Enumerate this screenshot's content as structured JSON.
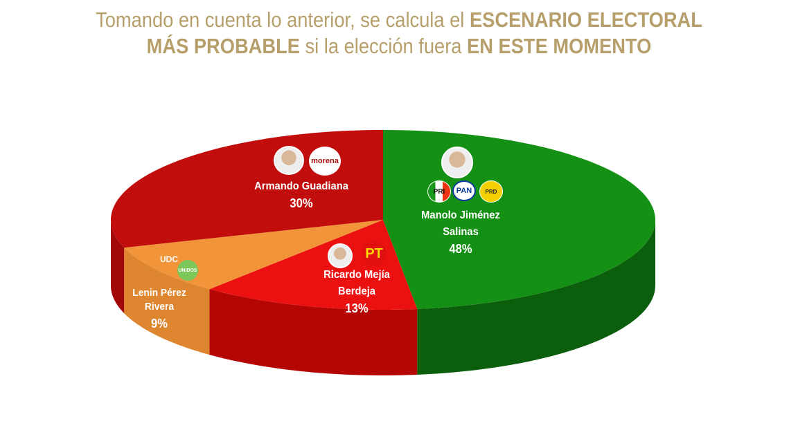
{
  "title": {
    "line1_regular": "Tomando en cuenta lo anterior, se calcula el ",
    "line1_bold": "ESCENARIO ELECTORAL",
    "line2_bold_a": "MÁS PROBABLE",
    "line2_regular": " si la elección fuera ",
    "line2_bold_b": "EN ESTE MOMENTO",
    "color": "#b79f6b"
  },
  "chart_data": {
    "type": "pie",
    "style": "3d",
    "start": "top, clockwise",
    "slices": [
      {
        "name": "Manolo Jiménez Salinas",
        "name_line1": "Manolo Jiménez",
        "name_line2": "Salinas",
        "value": 48,
        "label": "48%",
        "parties": [
          "PRI",
          "PAN",
          "PRD"
        ],
        "color": "#149114",
        "side_color": "#0b5e0b"
      },
      {
        "name": "Ricardo Mejía Berdeja",
        "name_line1": "Ricardo Mejía",
        "name_line2": "Berdeja",
        "value": 13,
        "label": "13%",
        "parties": [
          "PT"
        ],
        "color": "#ec1111",
        "side_color": "#b50606"
      },
      {
        "name": "Lenin Pérez Rivera",
        "name_line1": "Lenin Pérez",
        "name_line2": "Rivera",
        "value": 9,
        "label": "9%",
        "parties": [
          "UDC",
          "UNIDOS"
        ],
        "color": "#f2943a",
        "side_color": "#de8530"
      },
      {
        "name": "Armando Guadiana",
        "name_line1": "Armando Guadiana",
        "name_line2": "",
        "value": 30,
        "label": "30%",
        "parties": [
          "morena"
        ],
        "color": "#c20d0d",
        "side_color": "#a30808"
      }
    ]
  }
}
